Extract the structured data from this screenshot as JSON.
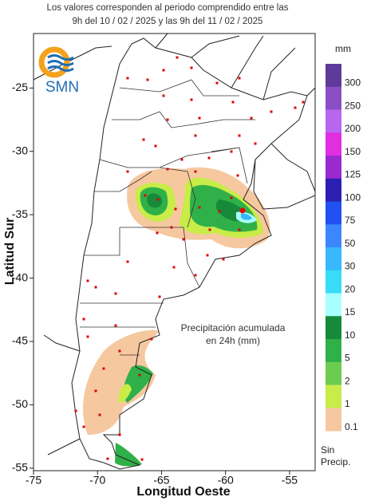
{
  "map": {
    "title_lines": [
      "Los valores corresponden al periodo comprendido entre las",
      "9h del 10 / 02 / 2025  y las 9h del 11 / 02 / 2025"
    ],
    "logo_text": "SMN",
    "x_label": "Longitud Oeste",
    "y_label": "Latitud Sur",
    "xlim": [
      -75,
      -53
    ],
    "ylim": [
      -55.2,
      -20.7
    ],
    "xticks": [
      -75,
      -70,
      -65,
      -60,
      -55
    ],
    "yticks": [
      -25,
      -30,
      -35,
      -40,
      -45,
      -50,
      -55
    ],
    "annotation_lines": [
      "Precipitación acumulada",
      "en 24h (mm)"
    ],
    "colorbar_unit": "mm",
    "colorbar": [
      {
        "value": 300,
        "color": "#5e3a9a"
      },
      {
        "value": 250,
        "color": "#8a4fc4"
      },
      {
        "value": 200,
        "color": "#b866f0"
      },
      {
        "value": 150,
        "color": "#e02ee0"
      },
      {
        "value": 125,
        "color": "#9a2ad0"
      },
      {
        "value": 100,
        "color": "#2a1fb0"
      },
      {
        "value": 75,
        "color": "#2050f0"
      },
      {
        "value": 50,
        "color": "#3c86ff"
      },
      {
        "value": 30,
        "color": "#38b8ff"
      },
      {
        "value": 20,
        "color": "#38dcf8"
      },
      {
        "value": 15,
        "color": "#a8ffff"
      },
      {
        "value": 10,
        "color": "#168a3a"
      },
      {
        "value": 5,
        "color": "#30b048"
      },
      {
        "value": 2,
        "color": "#6ccc50"
      },
      {
        "value": 1,
        "color": "#c8ec48"
      },
      {
        "value": 0.1,
        "color": "#f6c8a0"
      }
    ],
    "no_precip_label": [
      "Sin",
      "Precip."
    ]
  }
}
